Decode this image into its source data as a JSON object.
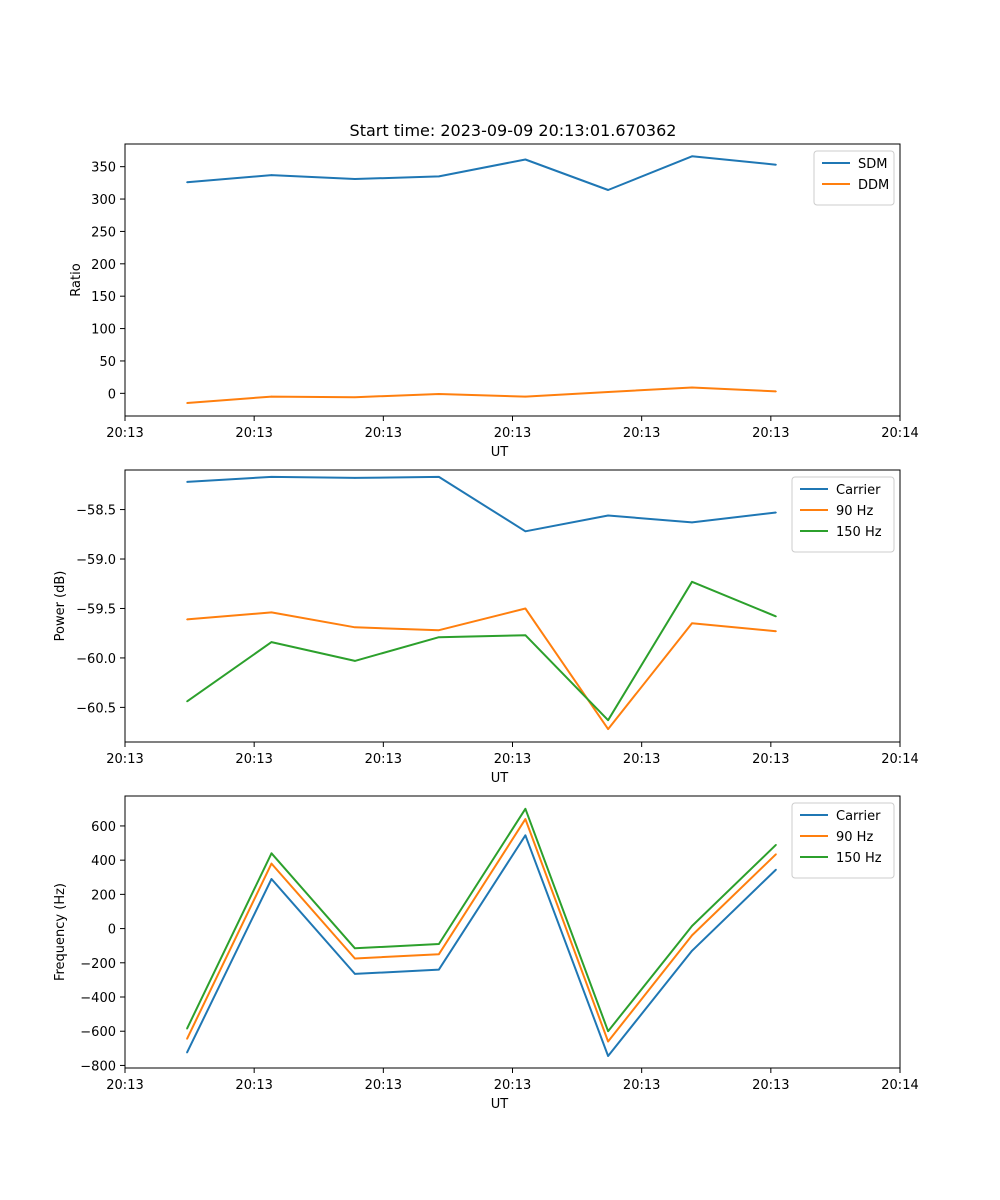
{
  "figure_title": "Start time: 2023-09-09 20:13:01.670362",
  "chart_data": [
    {
      "type": "line",
      "title": "Start time: 2023-09-09 20:13:01.670362",
      "xlabel": "UT",
      "ylabel": "Ratio",
      "xlim": [
        0,
        30
      ],
      "ylim": [
        -35,
        385
      ],
      "x_ticks": [
        0,
        5,
        10,
        15,
        20,
        25,
        30
      ],
      "x_tick_labels": [
        "20:13",
        "20:13",
        "20:13",
        "20:13",
        "20:13",
        "20:13",
        "20:14"
      ],
      "y_ticks": [
        0,
        50,
        100,
        150,
        200,
        250,
        300,
        350
      ],
      "y_tick_labels": [
        "0",
        "50",
        "100",
        "150",
        "200",
        "250",
        "300",
        "350"
      ],
      "x": [
        2.4,
        5.67,
        8.9,
        12.15,
        15.5,
        18.7,
        21.95,
        25.2
      ],
      "legend_position": "top-right",
      "series": [
        {
          "name": "SDM",
          "color": "#1f77b4",
          "values": [
            326,
            337,
            331,
            335,
            361,
            314,
            366,
            353
          ]
        },
        {
          "name": "DDM",
          "color": "#ff7f0e",
          "values": [
            -15,
            -5,
            -6,
            -1,
            -5,
            2,
            9,
            3
          ]
        }
      ]
    },
    {
      "type": "line",
      "title": "",
      "xlabel": "UT",
      "ylabel": "Power (dB)",
      "xlim": [
        0,
        30
      ],
      "ylim": [
        -60.85,
        -58.1
      ],
      "x_ticks": [
        0,
        5,
        10,
        15,
        20,
        25,
        30
      ],
      "x_tick_labels": [
        "20:13",
        "20:13",
        "20:13",
        "20:13",
        "20:13",
        "20:13",
        "20:14"
      ],
      "y_ticks": [
        -60.5,
        -60.0,
        -59.5,
        -59.0,
        -58.5
      ],
      "y_tick_labels": [
        "−60.5",
        "−60.0",
        "−59.5",
        "−59.0",
        "−58.5"
      ],
      "x": [
        2.4,
        5.67,
        8.9,
        12.15,
        15.5,
        18.7,
        21.95,
        25.2
      ],
      "legend_position": "top-right",
      "series": [
        {
          "name": "Carrier",
          "color": "#1f77b4",
          "values": [
            -58.22,
            -58.17,
            -58.18,
            -58.17,
            -58.72,
            -58.56,
            -58.63,
            -58.53
          ]
        },
        {
          "name": "90 Hz",
          "color": "#ff7f0e",
          "values": [
            -59.61,
            -59.54,
            -59.69,
            -59.72,
            -59.5,
            -60.72,
            -59.65,
            -59.73
          ]
        },
        {
          "name": "150 Hz",
          "color": "#2ca02c",
          "values": [
            -60.44,
            -59.84,
            -60.03,
            -59.79,
            -59.77,
            -60.63,
            -59.23,
            -59.58
          ]
        }
      ]
    },
    {
      "type": "line",
      "title": "",
      "xlabel": "UT",
      "ylabel": "Frequency (Hz)",
      "xlim": [
        0,
        30
      ],
      "ylim": [
        -815,
        775
      ],
      "x_ticks": [
        0,
        5,
        10,
        15,
        20,
        25,
        30
      ],
      "x_tick_labels": [
        "20:13",
        "20:13",
        "20:13",
        "20:13",
        "20:13",
        "20:13",
        "20:14"
      ],
      "y_ticks": [
        -800,
        -600,
        -400,
        -200,
        0,
        200,
        400,
        600
      ],
      "y_tick_labels": [
        "−800",
        "−600",
        "−400",
        "−200",
        "0",
        "200",
        "400",
        "600"
      ],
      "x": [
        2.4,
        5.67,
        8.9,
        12.15,
        15.5,
        18.7,
        21.95,
        25.2
      ],
      "legend_position": "top-right",
      "series": [
        {
          "name": "Carrier",
          "color": "#1f77b4",
          "values": [
            -725,
            290,
            -265,
            -240,
            545,
            -745,
            -130,
            345
          ]
        },
        {
          "name": "90 Hz",
          "color": "#ff7f0e",
          "values": [
            -645,
            380,
            -175,
            -150,
            640,
            -660,
            -40,
            435
          ]
        },
        {
          "name": "150 Hz",
          "color": "#2ca02c",
          "values": [
            -585,
            440,
            -115,
            -90,
            700,
            -600,
            15,
            490
          ]
        }
      ]
    }
  ]
}
